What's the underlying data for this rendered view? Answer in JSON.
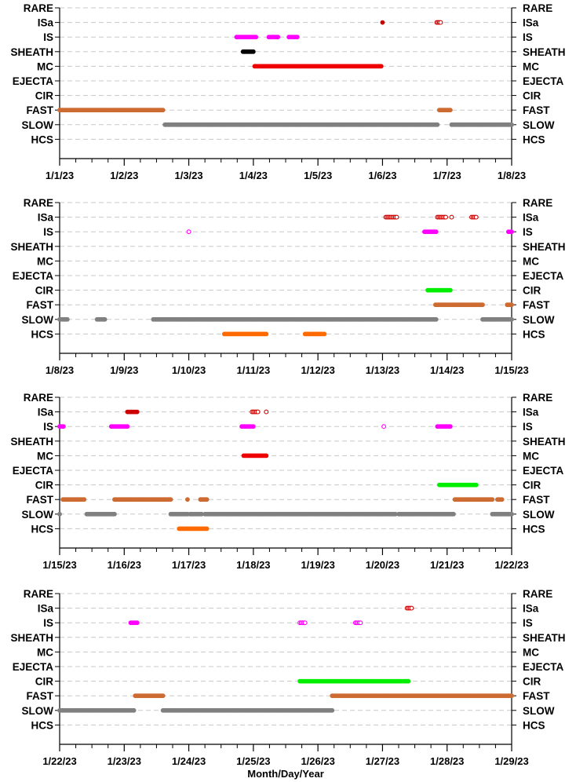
{
  "chart_data": {
    "type": "scatter",
    "xlabel": "Month/Day/Year",
    "categories": [
      "RARE",
      "ISa",
      "IS",
      "SHEATH",
      "MC",
      "EJECTA",
      "CIR",
      "FAST",
      "SLOW",
      "HCS"
    ],
    "colors": {
      "RARE": "#8b0000",
      "ISa": "#cc0000",
      "IS": "#ff00ff",
      "SHEATH": "#000000",
      "MC": "#ee0000",
      "EJECTA": "#000000",
      "CIR": "#00ee00",
      "FAST": "#cd6b32",
      "SLOW": "#808080",
      "HCS": "#ff6a00",
      "gridline": "#c8c8c8"
    },
    "panels": [
      {
        "x_ticks": [
          "1/1/23",
          "1/2/23",
          "1/3/23",
          "1/4/23",
          "1/5/23",
          "1/6/23",
          "1/7/23",
          "1/8/23"
        ],
        "segments": [
          {
            "cat": "ISa",
            "start": 5.0,
            "end": 5.01,
            "fill": true
          },
          {
            "cat": "ISa",
            "start": 5.84,
            "end": 5.9,
            "fill": false
          },
          {
            "cat": "IS",
            "start": 2.74,
            "end": 3.04,
            "fill": true
          },
          {
            "cat": "IS",
            "start": 3.24,
            "end": 3.38,
            "fill": true
          },
          {
            "cat": "IS",
            "start": 3.55,
            "end": 3.68,
            "fill": true
          },
          {
            "cat": "SHEATH",
            "start": 2.84,
            "end": 3.0,
            "fill": true
          },
          {
            "cat": "MC",
            "start": 3.02,
            "end": 4.98,
            "fill": true
          },
          {
            "cat": "FAST",
            "start": 0.0,
            "end": 1.6,
            "fill": true
          },
          {
            "cat": "FAST",
            "start": 5.88,
            "end": 6.05,
            "fill": true
          },
          {
            "cat": "SLOW",
            "start": 1.63,
            "end": 5.85,
            "fill": true
          },
          {
            "cat": "SLOW",
            "start": 6.07,
            "end": 7.0,
            "fill": true
          }
        ]
      },
      {
        "x_ticks": [
          "1/8/23",
          "1/9/23",
          "1/10/23",
          "1/11/23",
          "1/12/23",
          "1/13/23",
          "1/14/23",
          "1/15/23"
        ],
        "segments": [
          {
            "cat": "ISa",
            "start": 5.05,
            "end": 5.22,
            "fill": false
          },
          {
            "cat": "ISa",
            "start": 5.85,
            "end": 5.98,
            "fill": false
          },
          {
            "cat": "ISa",
            "start": 6.07,
            "end": 6.08,
            "fill": false
          },
          {
            "cat": "ISa",
            "start": 6.38,
            "end": 6.45,
            "fill": false
          },
          {
            "cat": "IS",
            "start": 2.0,
            "end": 2.01,
            "fill": false
          },
          {
            "cat": "IS",
            "start": 5.65,
            "end": 5.83,
            "fill": true
          },
          {
            "cat": "IS",
            "start": 6.95,
            "end": 7.0,
            "fill": true
          },
          {
            "cat": "CIR",
            "start": 5.7,
            "end": 6.05,
            "fill": true
          },
          {
            "cat": "FAST",
            "start": 5.82,
            "end": 6.55,
            "fill": true
          },
          {
            "cat": "FAST",
            "start": 6.93,
            "end": 7.0,
            "fill": true
          },
          {
            "cat": "SLOW",
            "start": 0.0,
            "end": 0.12,
            "fill": true
          },
          {
            "cat": "SLOW",
            "start": 0.58,
            "end": 0.7,
            "fill": true
          },
          {
            "cat": "SLOW",
            "start": 1.45,
            "end": 5.83,
            "fill": true
          },
          {
            "cat": "SLOW",
            "start": 6.55,
            "end": 7.0,
            "fill": true
          },
          {
            "cat": "HCS",
            "start": 2.55,
            "end": 3.2,
            "fill": true
          },
          {
            "cat": "HCS",
            "start": 3.8,
            "end": 4.1,
            "fill": true
          }
        ]
      },
      {
        "x_ticks": [
          "1/15/23",
          "1/16/23",
          "1/17/23",
          "1/18/23",
          "1/19/23",
          "1/20/23",
          "1/21/23",
          "1/22/23"
        ],
        "segments": [
          {
            "cat": "ISa",
            "start": 1.05,
            "end": 1.2,
            "fill": true
          },
          {
            "cat": "ISa",
            "start": 2.98,
            "end": 3.07,
            "fill": false
          },
          {
            "cat": "ISa",
            "start": 3.2,
            "end": 3.21,
            "fill": false
          },
          {
            "cat": "IS",
            "start": 0.0,
            "end": 0.06,
            "fill": true
          },
          {
            "cat": "IS",
            "start": 0.8,
            "end": 1.05,
            "fill": true
          },
          {
            "cat": "IS",
            "start": 2.82,
            "end": 3.0,
            "fill": true
          },
          {
            "cat": "IS",
            "start": 5.02,
            "end": 5.03,
            "fill": false
          },
          {
            "cat": "IS",
            "start": 5.85,
            "end": 6.05,
            "fill": true
          },
          {
            "cat": "MC",
            "start": 2.85,
            "end": 3.2,
            "fill": true
          },
          {
            "cat": "CIR",
            "start": 5.88,
            "end": 6.45,
            "fill": true
          },
          {
            "cat": "FAST",
            "start": 0.05,
            "end": 0.38,
            "fill": true
          },
          {
            "cat": "FAST",
            "start": 0.85,
            "end": 1.72,
            "fill": true
          },
          {
            "cat": "FAST",
            "start": 1.98,
            "end": 1.99,
            "fill": true
          },
          {
            "cat": "FAST",
            "start": 2.18,
            "end": 2.28,
            "fill": true
          },
          {
            "cat": "FAST",
            "start": 6.12,
            "end": 6.7,
            "fill": true
          },
          {
            "cat": "FAST",
            "start": 6.78,
            "end": 6.85,
            "fill": true
          },
          {
            "cat": "SLOW",
            "start": 0.0,
            "end": 0.01,
            "fill": true
          },
          {
            "cat": "SLOW",
            "start": 0.42,
            "end": 0.85,
            "fill": true
          },
          {
            "cat": "SLOW",
            "start": 1.72,
            "end": 1.98,
            "fill": true
          },
          {
            "cat": "SLOW",
            "start": 2.02,
            "end": 2.2,
            "fill": true
          },
          {
            "cat": "SLOW",
            "start": 2.25,
            "end": 5.2,
            "fill": true
          },
          {
            "cat": "SLOW",
            "start": 5.25,
            "end": 6.1,
            "fill": true
          },
          {
            "cat": "SLOW",
            "start": 6.7,
            "end": 7.0,
            "fill": true
          },
          {
            "cat": "HCS",
            "start": 1.85,
            "end": 2.28,
            "fill": true
          }
        ]
      },
      {
        "x_ticks": [
          "1/22/23",
          "1/23/23",
          "1/24/23",
          "1/25/23",
          "1/26/23",
          "1/27/23",
          "1/28/23",
          "1/29/23"
        ],
        "segments": [
          {
            "cat": "ISa",
            "start": 5.38,
            "end": 5.45,
            "fill": false
          },
          {
            "cat": "IS",
            "start": 1.1,
            "end": 1.2,
            "fill": true
          },
          {
            "cat": "IS",
            "start": 3.72,
            "end": 3.8,
            "fill": false
          },
          {
            "cat": "IS",
            "start": 4.58,
            "end": 4.66,
            "fill": false
          },
          {
            "cat": "CIR",
            "start": 3.72,
            "end": 5.4,
            "fill": true
          },
          {
            "cat": "FAST",
            "start": 1.17,
            "end": 1.6,
            "fill": true
          },
          {
            "cat": "FAST",
            "start": 4.22,
            "end": 7.0,
            "fill": true
          },
          {
            "cat": "SLOW",
            "start": 0.0,
            "end": 1.15,
            "fill": true
          },
          {
            "cat": "SLOW",
            "start": 1.6,
            "end": 4.22,
            "fill": true
          }
        ]
      }
    ]
  }
}
